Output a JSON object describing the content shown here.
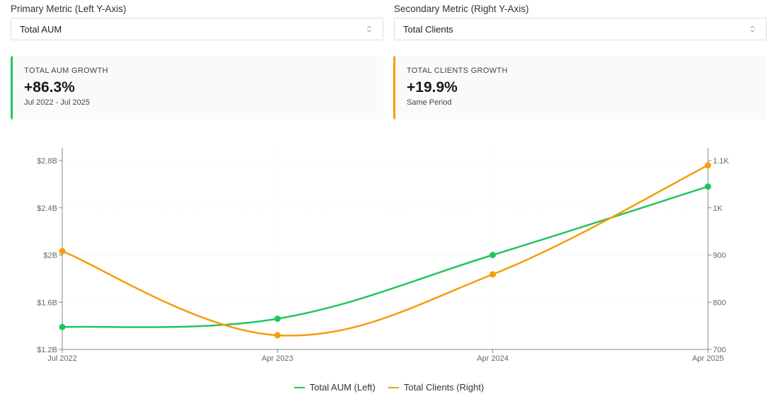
{
  "controls": {
    "primary": {
      "label": "Primary Metric (Left Y-Axis)",
      "value": "Total AUM",
      "icon": "chevron-up-down-icon"
    },
    "secondary": {
      "label": "Secondary Metric (Right Y-Axis)",
      "value": "Total Clients",
      "icon": "chevron-up-down-icon"
    }
  },
  "stats": {
    "primary": {
      "title": "TOTAL AUM GROWTH",
      "value": "+86.3%",
      "subtitle": "Jul 2022 - Jul 2025",
      "accent": "#22c55e"
    },
    "secondary": {
      "title": "TOTAL CLIENTS GROWTH",
      "value": "+19.9%",
      "subtitle": "Same Period",
      "accent": "#f59e0b"
    }
  },
  "legend": [
    {
      "label": "Total AUM (Left)",
      "color": "#22c55e"
    },
    {
      "label": "Total Clients (Right)",
      "color": "#f59e0b"
    }
  ],
  "chart_data": {
    "type": "line",
    "title": "",
    "categories": [
      "Jul 2022",
      "Apr 2023",
      "Apr 2024",
      "Apr 2025"
    ],
    "series": [
      {
        "name": "Total AUM (Left)",
        "axis": "left",
        "color": "#22c55e",
        "values": [
          1.39,
          1.46,
          2.0,
          2.58
        ],
        "unit": "$B"
      },
      {
        "name": "Total Clients (Right)",
        "axis": "right",
        "color": "#f59e0b",
        "values": [
          908,
          730,
          859,
          1090
        ]
      }
    ],
    "left_axis": {
      "label": "",
      "range": [
        1.2,
        2.9
      ],
      "ticks": [
        "$1.2B",
        "$1.6B",
        "$2B",
        "$2.4B",
        "$2.8B"
      ],
      "tick_values": [
        1.2,
        1.6,
        2.0,
        2.4,
        2.8
      ]
    },
    "right_axis": {
      "label": "",
      "range": [
        700,
        1125
      ],
      "ticks": [
        "700",
        "800",
        "900",
        "1K",
        "1.1K"
      ],
      "tick_values": [
        700,
        800,
        900,
        1000,
        1100
      ]
    },
    "xlabel": "",
    "grid": true,
    "legend_position": "bottom",
    "curve": "smooth"
  }
}
